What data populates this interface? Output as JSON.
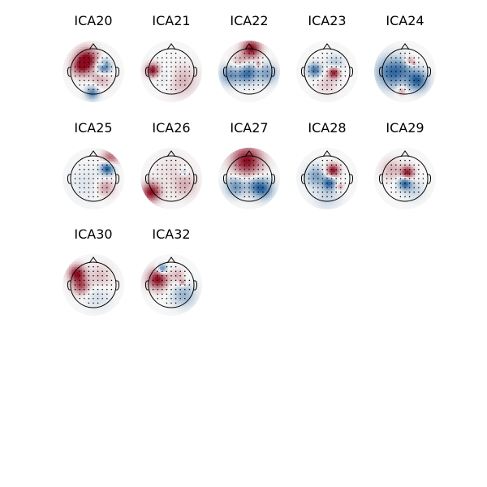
{
  "figure": {
    "background": "#ffffff",
    "colormap": "RdBu_r"
  },
  "chart_data": {
    "type": "heatmap",
    "subtype": "eeg-topomap-grid",
    "grid": {
      "columns": 5,
      "rows": 3
    },
    "colors": {
      "positive": "#8b0a1f",
      "neutral": "#f7f7f7",
      "negative": "#0b4d8f",
      "outline": "#000000"
    },
    "components": [
      {
        "label": "ICA20",
        "blobs": [
          [
            -0.28,
            -0.55,
            0.32,
            1.0
          ],
          [
            -0.55,
            -0.2,
            0.28,
            0.7
          ],
          [
            0.45,
            -0.18,
            0.22,
            -0.9
          ],
          [
            -0.05,
            0.95,
            0.2,
            -0.7
          ],
          [
            0.35,
            0.25,
            0.3,
            0.35
          ],
          [
            0.4,
            -0.3,
            0.08,
            0.5
          ]
        ]
      },
      {
        "label": "ICA21",
        "blobs": [
          [
            -0.82,
            -0.05,
            0.2,
            1.0
          ],
          [
            0.45,
            0.4,
            0.45,
            0.3
          ],
          [
            -0.2,
            0.25,
            0.35,
            -0.15
          ]
        ]
      },
      {
        "label": "ICA22",
        "blobs": [
          [
            0.1,
            -1.0,
            0.28,
            1.0
          ],
          [
            -0.35,
            -0.35,
            0.3,
            0.4
          ],
          [
            -0.1,
            0.05,
            0.3,
            -0.9
          ],
          [
            -0.85,
            0.15,
            0.3,
            -0.6
          ],
          [
            0.8,
            0.1,
            0.3,
            -0.5
          ],
          [
            0.4,
            -0.3,
            0.1,
            0.5
          ]
        ]
      },
      {
        "label": "ICA23",
        "blobs": [
          [
            0.3,
            0.05,
            0.17,
            1.0
          ],
          [
            -0.55,
            -0.05,
            0.2,
            -0.8
          ],
          [
            0.35,
            -0.35,
            0.25,
            -0.3
          ],
          [
            0.0,
            0.55,
            0.3,
            0.2
          ]
        ]
      },
      {
        "label": "ICA24",
        "blobs": [
          [
            -0.6,
            0.05,
            0.45,
            -0.8
          ],
          [
            0.55,
            0.4,
            0.3,
            -0.9
          ],
          [
            0.2,
            -0.45,
            0.15,
            0.5
          ],
          [
            -0.15,
            0.85,
            0.15,
            0.4
          ],
          [
            0.0,
            -0.1,
            0.3,
            -0.3
          ],
          [
            0.4,
            -0.35,
            0.06,
            0.5
          ]
        ]
      },
      {
        "label": "ICA25",
        "blobs": [
          [
            0.62,
            -0.45,
            0.2,
            -1.0
          ],
          [
            0.55,
            0.4,
            0.25,
            0.4
          ],
          [
            0.75,
            -0.9,
            0.25,
            0.6
          ],
          [
            -0.3,
            0.2,
            0.5,
            -0.1
          ]
        ]
      },
      {
        "label": "ICA26",
        "blobs": [
          [
            -0.88,
            0.6,
            0.28,
            1.0
          ],
          [
            0.6,
            0.3,
            0.35,
            0.3
          ],
          [
            0.55,
            -0.3,
            0.12,
            -0.3
          ],
          [
            0.0,
            -0.4,
            0.5,
            0.1
          ]
        ]
      },
      {
        "label": "ICA27",
        "blobs": [
          [
            -0.1,
            -0.8,
            0.45,
            1.0
          ],
          [
            -0.6,
            0.35,
            0.3,
            -0.6
          ],
          [
            0.6,
            0.45,
            0.3,
            -0.8
          ],
          [
            0.2,
            0.3,
            0.25,
            -0.4
          ]
        ]
      },
      {
        "label": "ICA28",
        "blobs": [
          [
            0.25,
            -0.35,
            0.2,
            1.0
          ],
          [
            0.1,
            0.2,
            0.2,
            -0.8
          ],
          [
            -0.5,
            -0.1,
            0.3,
            -0.5
          ],
          [
            0.55,
            0.35,
            0.12,
            0.4
          ],
          [
            0.0,
            0.8,
            0.4,
            -0.2
          ]
        ]
      },
      {
        "label": "ICA29",
        "blobs": [
          [
            0.1,
            -0.25,
            0.2,
            1.0
          ],
          [
            0.0,
            0.2,
            0.2,
            -0.9
          ],
          [
            -0.6,
            -0.4,
            0.3,
            0.3
          ],
          [
            0.4,
            0.5,
            0.3,
            -0.2
          ]
        ]
      },
      {
        "label": "ICA30",
        "blobs": [
          [
            -0.72,
            -0.5,
            0.25,
            1.0
          ],
          [
            -0.55,
            0.05,
            0.25,
            0.7
          ],
          [
            0.3,
            -0.35,
            0.35,
            0.25
          ],
          [
            0.2,
            0.5,
            0.4,
            -0.15
          ]
        ]
      },
      {
        "label": "ICA32",
        "blobs": [
          [
            -0.6,
            -0.25,
            0.3,
            1.0
          ],
          [
            -0.4,
            -0.7,
            0.15,
            -0.8
          ],
          [
            0.55,
            0.45,
            0.35,
            -0.4
          ],
          [
            0.5,
            -0.1,
            0.1,
            0.5
          ],
          [
            0.3,
            -0.4,
            0.2,
            0.3
          ]
        ]
      }
    ]
  }
}
